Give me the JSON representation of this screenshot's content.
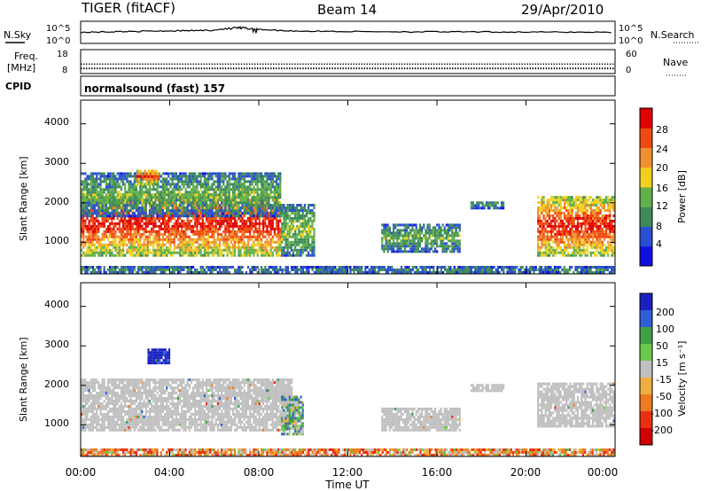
{
  "header": {
    "station": "TIGER (fitACF)",
    "beam": "Beam 14",
    "date": "29/Apr/2010"
  },
  "noise_panel": {
    "left_label": "N.Sky",
    "right_label": "N.Search",
    "y_top_label": "10^5",
    "y_bottom_label": "10^0"
  },
  "freq_panel": {
    "left_label_line1": "Freq.",
    "left_label_line2": "[MHz]",
    "left_ticks": [
      "18",
      "8"
    ],
    "right_label": "Nave",
    "right_ticks": [
      "60",
      "0"
    ]
  },
  "cpid_panel": {
    "label": "CPID",
    "program": "normalsound (fast) 157"
  },
  "power_panel": {
    "ylabel": "Slant Range [km]",
    "yticks": [
      "1000",
      "2000",
      "3000",
      "4000"
    ],
    "colorbar_label": "Power [dB]",
    "colorbar_ticks": [
      "4",
      "8",
      "12",
      "16",
      "20",
      "24",
      "28"
    ]
  },
  "velocity_panel": {
    "ylabel": "Slant Range [km]",
    "yticks": [
      "1000",
      "2000",
      "3000",
      "4000"
    ],
    "colorbar_label": "Velocity [m s⁻¹]",
    "colorbar_ticks": [
      "200",
      "100",
      "50",
      "15",
      "-15",
      "-50",
      "-100",
      "-200"
    ]
  },
  "xaxis": {
    "label": "Time UT",
    "ticks": [
      "00:00",
      "04:00",
      "08:00",
      "12:00",
      "16:00",
      "20:00",
      "00:00"
    ]
  },
  "colors": {
    "power_scale": [
      "#1010e0",
      "#2a4fd0",
      "#3d8a5a",
      "#62b04a",
      "#f0d020",
      "#f09030",
      "#f04a10",
      "#e00000"
    ],
    "velocity_scale": [
      "#1a20c0",
      "#2f5fd8",
      "#3fa04a",
      "#6cc84a",
      "#c0c0c0",
      "#f0b040",
      "#f07a20",
      "#e83010",
      "#d00000"
    ]
  },
  "chart_data": [
    {
      "type": "line",
      "name_panel": "noise",
      "x_range_hours": [
        0,
        24
      ],
      "ylog": true,
      "ylim": [
        1,
        100000
      ],
      "series": [
        {
          "x": [
            0,
            1,
            2,
            3,
            4,
            5,
            6,
            7,
            7.5,
            8,
            9,
            10,
            12,
            14,
            16,
            18,
            20,
            22,
            24
          ],
          "values": [
            320,
            400,
            500,
            600,
            700,
            800,
            1000,
            3000,
            2500,
            1500,
            800,
            600,
            500,
            450,
            420,
            400,
            380,
            360,
            340
          ]
        }
      ]
    },
    {
      "type": "scatter",
      "name_panel": "frequency",
      "x_range_hours": [
        0,
        24
      ],
      "ylim": [
        8,
        18
      ],
      "series": [
        {
          "x": [
            0,
            24
          ],
          "values": [
            12,
            12
          ]
        },
        {
          "x": [
            0,
            24
          ],
          "values": [
            10.3,
            10.3
          ]
        }
      ]
    },
    {
      "type": "heatmap",
      "name_panel": "power",
      "x_range_hours": [
        0,
        24
      ],
      "ylim_km": [
        200,
        4600
      ],
      "zlim_db": [
        0,
        32
      ],
      "regions": [
        {
          "t": [
            0,
            9
          ],
          "r": [
            700,
            2300
          ],
          "level": 26
        },
        {
          "t": [
            0,
            9
          ],
          "r": [
            1700,
            2800
          ],
          "level": 12
        },
        {
          "t": [
            2.5,
            3.5
          ],
          "r": [
            2500,
            2900
          ],
          "level": 24
        },
        {
          "t": [
            9,
            10.5
          ],
          "r": [
            700,
            2000
          ],
          "level": 14
        },
        {
          "t": [
            13.5,
            17
          ],
          "r": [
            800,
            1500
          ],
          "level": 12
        },
        {
          "t": [
            17.5,
            19
          ],
          "r": [
            1900,
            2100
          ],
          "level": 10
        },
        {
          "t": [
            20.5,
            24
          ],
          "r": [
            700,
            2200
          ],
          "level": 26
        },
        {
          "t": [
            0,
            24
          ],
          "r": [
            200,
            450
          ],
          "level": 8
        }
      ]
    },
    {
      "type": "heatmap",
      "name_panel": "velocity",
      "x_range_hours": [
        0,
        24
      ],
      "ylim_km": [
        200,
        4600
      ],
      "zlim_ms": [
        -250,
        250
      ],
      "regions": [
        {
          "t": [
            0,
            9.5
          ],
          "r": [
            900,
            2200
          ],
          "v": 0
        },
        {
          "t": [
            3,
            4
          ],
          "r": [
            2600,
            3000
          ],
          "v": 200
        },
        {
          "t": [
            9,
            10
          ],
          "r": [
            800,
            1800
          ],
          "v": 40
        },
        {
          "t": [
            13.5,
            17
          ],
          "r": [
            900,
            1500
          ],
          "v": 0
        },
        {
          "t": [
            17.5,
            19
          ],
          "r": [
            1900,
            2100
          ],
          "v": 0
        },
        {
          "t": [
            20.5,
            24
          ],
          "r": [
            1000,
            2100
          ],
          "v": 0
        },
        {
          "t": [
            0,
            24
          ],
          "r": [
            200,
            450
          ],
          "v": -40
        }
      ]
    }
  ]
}
